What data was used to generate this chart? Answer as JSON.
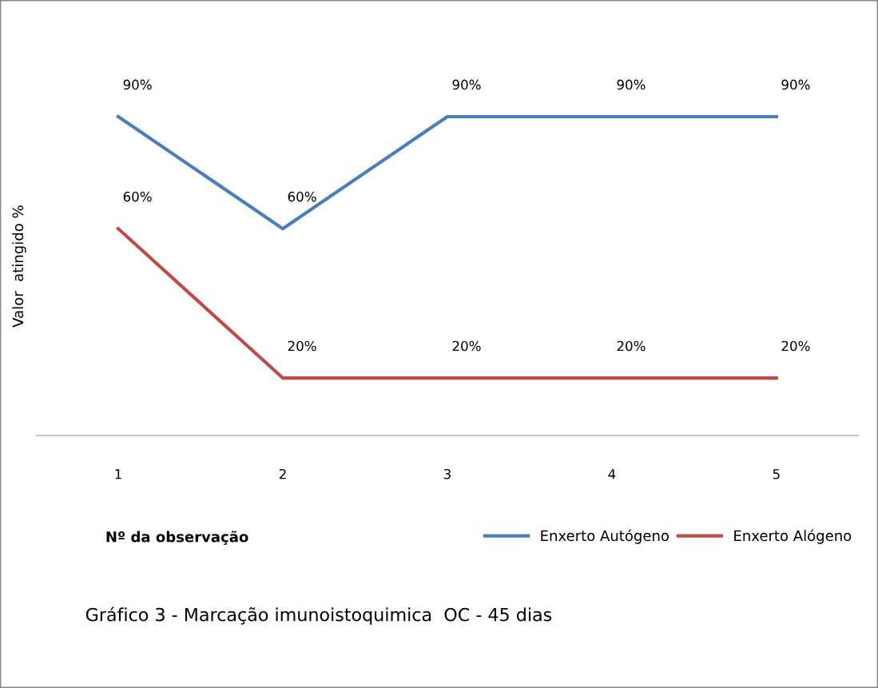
{
  "chart_data": {
    "type": "line",
    "title": "Gráfico 3 - Marcação imunoistoquimica  OC - 45 dias",
    "xlabel": "Nº da observação",
    "ylabel": "Valor  atingido %",
    "categories": [
      "1",
      "2",
      "3",
      "4",
      "5"
    ],
    "series": [
      {
        "name": "Enxerto Autógeno",
        "color": "#4a7ebb",
        "values": [
          90,
          60,
          90,
          90,
          90
        ],
        "value_labels": [
          "90%",
          "60%",
          "90%",
          "90%",
          "90%"
        ]
      },
      {
        "name": "Enxerto Alógeno",
        "color": "#be4b48",
        "values": [
          60,
          20,
          20,
          20,
          20
        ],
        "value_labels": [
          "60%",
          "20%",
          "20%",
          "20%",
          "20%"
        ]
      }
    ],
    "legend": "bottom right",
    "grid": false,
    "marker": "none",
    "line_style": "solid"
  }
}
